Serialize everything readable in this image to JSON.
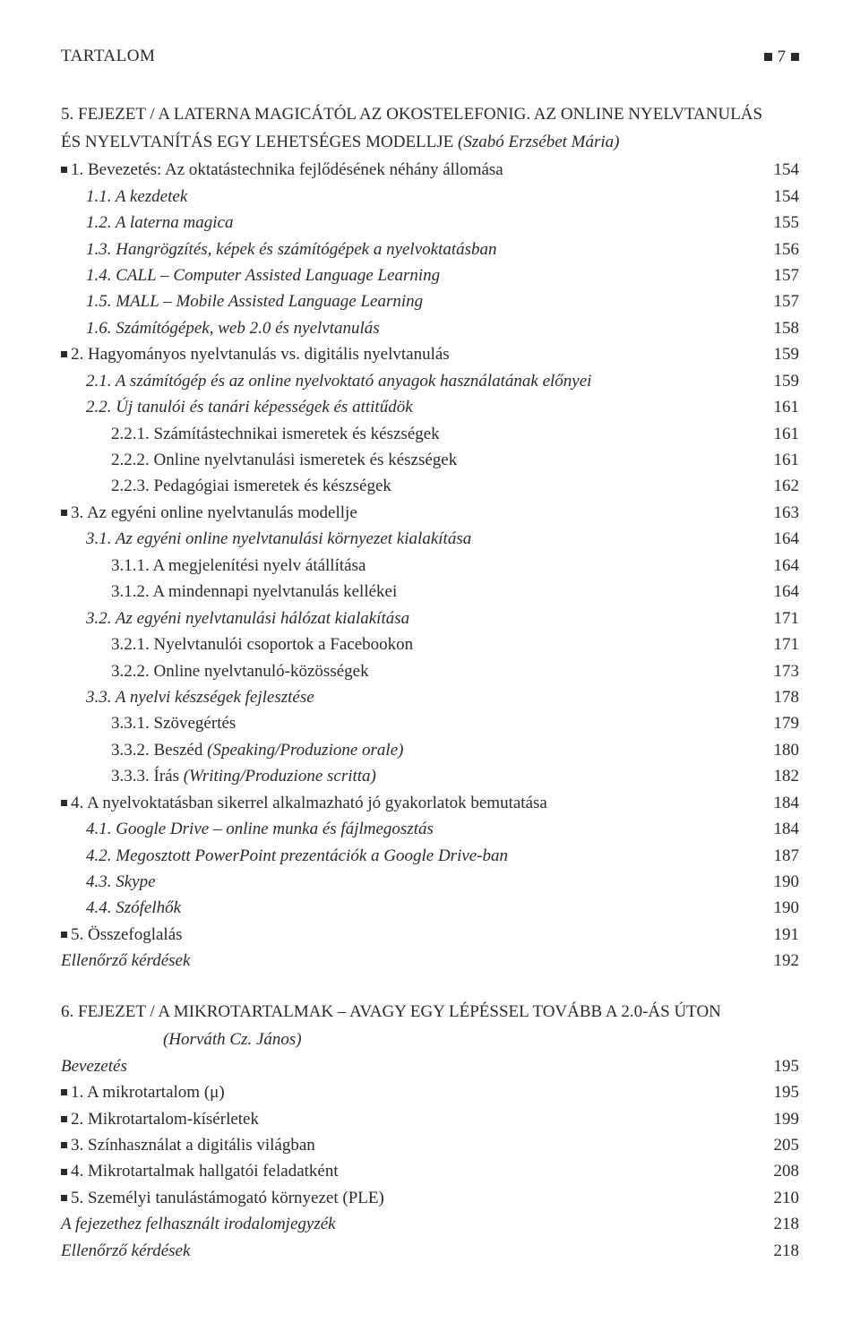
{
  "header": {
    "title": "TARTALOM",
    "page": "7"
  },
  "chapter5": {
    "title_line1": "5. FEJEZET / A LATERNA MAGICÁTÓL AZ OKOSTELEFONIG. AZ ONLINE NYELVTANULÁS",
    "title_line2": "ÉS NYELVTANÍTÁS EGY LEHETSÉGES MODELLJE",
    "author": "  (Szabó Erzsébet Mária)"
  },
  "entries5": [
    {
      "text": "1. Bevezetés: Az oktatástechnika fejlődésének néhány állomása",
      "page": "154",
      "bullet": true,
      "indent": 0,
      "italic": false
    },
    {
      "text": "1.1. A kezdetek",
      "page": "154",
      "bullet": false,
      "indent": 1,
      "italic": true
    },
    {
      "text": "1.2. A laterna magica",
      "page": "155",
      "bullet": false,
      "indent": 1,
      "italic": true
    },
    {
      "text": "1.3. Hangrögzítés, képek és számítógépek a nyelvoktatásban",
      "page": "156",
      "bullet": false,
      "indent": 1,
      "italic": true
    },
    {
      "text": "1.4. CALL – Computer Assisted Language Learning",
      "page": "157",
      "bullet": false,
      "indent": 1,
      "italic": true
    },
    {
      "text": "1.5. MALL – Mobile Assisted Language Learning",
      "page": "157",
      "bullet": false,
      "indent": 1,
      "italic": true
    },
    {
      "text": "1.6. Számítógépek, web 2.0 és nyelvtanulás",
      "page": "158",
      "bullet": false,
      "indent": 1,
      "italic": true
    },
    {
      "text": "2. Hagyományos nyelvtanulás vs. digitális nyelvtanulás",
      "page": "159",
      "bullet": true,
      "indent": 0,
      "italic": false
    },
    {
      "text": "2.1. A számítógép és az online nyelvoktató anyagok használatának előnyei",
      "page": "159",
      "bullet": false,
      "indent": 1,
      "italic": true
    },
    {
      "text": "2.2. Új tanulói és tanári képességek és attitűdök",
      "page": "161",
      "bullet": false,
      "indent": 1,
      "italic": true
    },
    {
      "text": "2.2.1. Számítástechnikai ismeretek és készségek",
      "page": "161",
      "bullet": false,
      "indent": 2,
      "italic": false
    },
    {
      "text": "2.2.2. Online nyelvtanulási ismeretek és készségek",
      "page": "161",
      "bullet": false,
      "indent": 2,
      "italic": false
    },
    {
      "text": "2.2.3. Pedagógiai ismeretek és készségek",
      "page": "162",
      "bullet": false,
      "indent": 2,
      "italic": false
    },
    {
      "text": "3. Az egyéni online nyelvtanulás modellje",
      "page": "163",
      "bullet": true,
      "indent": 0,
      "italic": false
    },
    {
      "text": "3.1. Az egyéni online nyelvtanulási környezet kialakítása",
      "page": "164",
      "bullet": false,
      "indent": 1,
      "italic": true
    },
    {
      "text": "3.1.1. A megjelenítési nyelv átállítása",
      "page": "164",
      "bullet": false,
      "indent": 2,
      "italic": false
    },
    {
      "text": "3.1.2. A mindennapi nyelvtanulás kellékei",
      "page": "164",
      "bullet": false,
      "indent": 2,
      "italic": false
    },
    {
      "text": "3.2. Az egyéni nyelvtanulási hálózat kialakítása",
      "page": "171",
      "bullet": false,
      "indent": 1,
      "italic": true
    },
    {
      "text": "3.2.1. Nyelvtanulói csoportok a Facebookon",
      "page": "171",
      "bullet": false,
      "indent": 2,
      "italic": false
    },
    {
      "text": "3.2.2. Online nyelvtanuló-közösségek",
      "page": "173",
      "bullet": false,
      "indent": 2,
      "italic": false
    },
    {
      "text": "3.3. A nyelvi készségek fejlesztése",
      "page": "178",
      "bullet": false,
      "indent": 1,
      "italic": true
    },
    {
      "text": "3.3.1. Szövegértés",
      "page": "179",
      "bullet": false,
      "indent": 2,
      "italic": false
    },
    {
      "text": "3.3.2. Beszéd (Speaking/Produzione orale)",
      "page": "180",
      "bullet": false,
      "indent": 2,
      "italic": false,
      "mixed": true,
      "plain": "3.3.2. Beszéd ",
      "ital": "(Speaking/Produzione orale)"
    },
    {
      "text": "3.3.3. Írás (Writing/Produzione scritta)",
      "page": "182",
      "bullet": false,
      "indent": 2,
      "italic": false,
      "mixed": true,
      "plain": "3.3.3. Írás ",
      "ital": "(Writing/Produzione scritta)"
    },
    {
      "text": "4. A nyelvoktatásban sikerrel alkalmazható jó gyakorlatok bemutatása",
      "page": "184",
      "bullet": true,
      "indent": 0,
      "italic": false
    },
    {
      "text": "4.1. Google Drive – online munka és fájlmegosztás",
      "page": "184",
      "bullet": false,
      "indent": 1,
      "italic": true
    },
    {
      "text": "4.2. Megosztott PowerPoint prezentációk a Google Drive-ban",
      "page": "187",
      "bullet": false,
      "indent": 1,
      "italic": true
    },
    {
      "text": "4.3. Skype",
      "page": "190",
      "bullet": false,
      "indent": 1,
      "italic": true
    },
    {
      "text": "4.4. Szófelhők",
      "page": "190",
      "bullet": false,
      "indent": 1,
      "italic": true
    },
    {
      "text": "5. Összefoglalás",
      "page": "191",
      "bullet": true,
      "indent": 0,
      "italic": false
    },
    {
      "text": "Ellenőrző kérdések",
      "page": "192",
      "bullet": false,
      "indent": 0,
      "italic": true
    }
  ],
  "chapter6": {
    "title": "6. FEJEZET / A MIKROTARTALMAK – AVAGY EGY LÉPÉSSEL TOVÁBB A 2.0-ÁS ÚTON",
    "author": "(Horváth Cz. János)"
  },
  "entries6": [
    {
      "text": "Bevezetés",
      "page": "195",
      "bullet": false,
      "indent": 0,
      "italic": true
    },
    {
      "text": "1. A mikrotartalom (μ)",
      "page": "195",
      "bullet": true,
      "indent": 0,
      "italic": false
    },
    {
      "text": "2. Mikrotartalom-kísérletek",
      "page": "199",
      "bullet": true,
      "indent": 0,
      "italic": false
    },
    {
      "text": "3. Színhasználat a digitális világban",
      "page": "205",
      "bullet": true,
      "indent": 0,
      "italic": false
    },
    {
      "text": "4. Mikrotartalmak hallgatói feladatként",
      "page": "208",
      "bullet": true,
      "indent": 0,
      "italic": false
    },
    {
      "text": "5. Személyi tanulástámogató környezet (PLE)",
      "page": "210",
      "bullet": true,
      "indent": 0,
      "italic": false
    },
    {
      "text": "A fejezethez felhasznált irodalomjegyzék",
      "page": "218",
      "bullet": false,
      "indent": 0,
      "italic": true
    },
    {
      "text": "Ellenőrző kérdések",
      "page": "218",
      "bullet": false,
      "indent": 0,
      "italic": true
    }
  ]
}
